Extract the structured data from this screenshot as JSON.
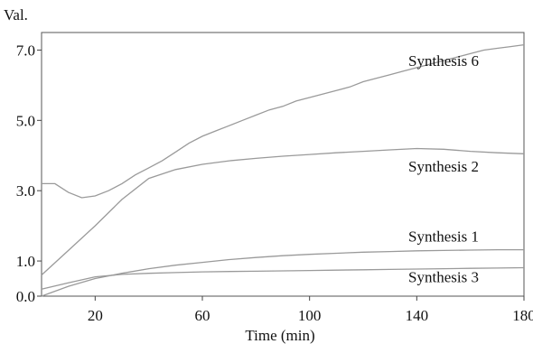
{
  "chart_data": {
    "type": "line",
    "ylabel": "Val.",
    "xlabel": "Time (min)",
    "xlim": [
      0,
      180
    ],
    "ylim": [
      0.0,
      7.5
    ],
    "x_ticks": [
      "20",
      "60",
      "100",
      "140",
      "180"
    ],
    "y_ticks": [
      "0.0",
      "1.0",
      "3.0",
      "5.0",
      "7.0"
    ],
    "grid": false,
    "legend": "none",
    "line_color": "#9a9a9a",
    "series": [
      {
        "name": "Synthesis 6",
        "x": [
          0,
          5,
          10,
          15,
          20,
          25,
          30,
          35,
          40,
          45,
          50,
          55,
          60,
          65,
          70,
          75,
          80,
          85,
          90,
          95,
          100,
          105,
          110,
          115,
          120,
          125,
          130,
          135,
          140,
          145,
          150,
          155,
          160,
          165,
          170,
          175,
          180
        ],
        "y": [
          3.2,
          3.2,
          2.95,
          2.8,
          2.85,
          3.0,
          3.2,
          3.45,
          3.65,
          3.85,
          4.1,
          4.35,
          4.55,
          4.7,
          4.85,
          5.0,
          5.15,
          5.3,
          5.4,
          5.55,
          5.65,
          5.75,
          5.85,
          5.95,
          6.1,
          6.2,
          6.3,
          6.4,
          6.5,
          6.6,
          6.7,
          6.8,
          6.9,
          7.0,
          7.05,
          7.1,
          7.15
        ]
      },
      {
        "name": "Synthesis 2",
        "x": [
          0,
          10,
          20,
          30,
          40,
          50,
          60,
          70,
          80,
          90,
          100,
          110,
          120,
          130,
          140,
          150,
          160,
          170,
          180
        ],
        "y": [
          0.6,
          1.3,
          2.0,
          2.75,
          3.35,
          3.6,
          3.75,
          3.85,
          3.92,
          3.98,
          4.03,
          4.08,
          4.12,
          4.16,
          4.2,
          4.18,
          4.12,
          4.08,
          4.05
        ]
      },
      {
        "name": "Synthesis 1",
        "x": [
          0,
          10,
          20,
          30,
          40,
          50,
          60,
          70,
          80,
          90,
          100,
          110,
          120,
          130,
          140,
          150,
          160,
          170,
          180
        ],
        "y": [
          0.0,
          0.28,
          0.5,
          0.65,
          0.78,
          0.88,
          0.96,
          1.04,
          1.1,
          1.15,
          1.19,
          1.22,
          1.25,
          1.27,
          1.29,
          1.3,
          1.31,
          1.32,
          1.32
        ]
      },
      {
        "name": "Synthesis 3",
        "x": [
          0,
          10,
          20,
          30,
          40,
          50,
          60,
          70,
          80,
          90,
          100,
          110,
          120,
          130,
          140,
          150,
          160,
          170,
          180
        ],
        "y": [
          0.2,
          0.38,
          0.55,
          0.62,
          0.65,
          0.67,
          0.69,
          0.7,
          0.71,
          0.72,
          0.73,
          0.74,
          0.75,
          0.76,
          0.77,
          0.78,
          0.79,
          0.8,
          0.81
        ]
      }
    ],
    "annotations": [
      {
        "text": "Synthesis 6",
        "x": 150,
        "y": 6.55
      },
      {
        "text": "Synthesis 2",
        "x": 150,
        "y": 3.55
      },
      {
        "text": "Synthesis 1",
        "x": 150,
        "y": 1.55
      },
      {
        "text": "Synthesis 3",
        "x": 150,
        "y": 0.4
      }
    ]
  }
}
